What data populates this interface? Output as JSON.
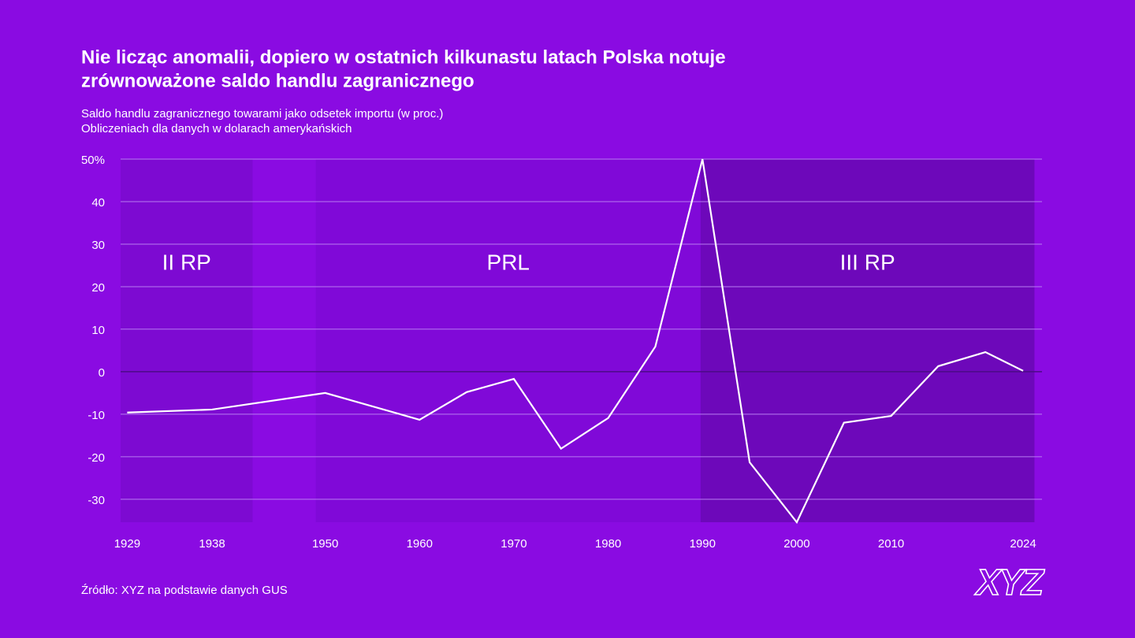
{
  "chart_data": {
    "type": "line",
    "title_lines": [
      "Nie licząc anomalii, dopiero w ostatnich kilkunastu latach Polska notuje",
      "zrównoważone saldo handlu zagranicznego"
    ],
    "subtitle_lines": [
      "Saldo handlu zagranicznego towarami jako odsetek importu (w proc.)",
      "Obliczeniach dla danych w dolarach amerykańskich"
    ],
    "source": "Źródło: XYZ na podstawie danych GUS",
    "logo": "XYZ",
    "x": [
      1929,
      1938,
      1950,
      1960,
      1965,
      1970,
      1975,
      1980,
      1985,
      1990,
      1995,
      2000,
      2005,
      2010,
      2015,
      2020,
      2024
    ],
    "series": [
      {
        "color": "#ffffff",
        "values": [
          -9.6,
          -8.9,
          -5,
          -11.3,
          -4.8,
          -1.7,
          -18.1,
          -10.9,
          5.9,
          50,
          -21.3,
          -35.4,
          -12,
          -10.4,
          1.3,
          4.6,
          0.2
        ]
      }
    ],
    "periods": [
      {
        "label": "II RP",
        "start": 1928.3,
        "end": 1942.3,
        "color": "#7d0ad2"
      },
      {
        "label": "PRL",
        "start": 1949,
        "end": 1989.8,
        "color": "#8009d8"
      },
      {
        "label": "III RP",
        "start": 1989.8,
        "end": 2025.2,
        "color": "#6d08ba"
      }
    ],
    "xlim": [
      1928.3,
      2026
    ],
    "xticks": [
      1929,
      1938,
      1950,
      1960,
      1970,
      1980,
      1990,
      2000,
      2010,
      2024
    ],
    "ylim": [
      -35.4,
      50
    ],
    "yticks": [
      {
        "value": 50,
        "label": "50%"
      },
      40,
      30,
      20,
      10,
      0,
      -10,
      -20,
      -30
    ],
    "grid": true
  }
}
